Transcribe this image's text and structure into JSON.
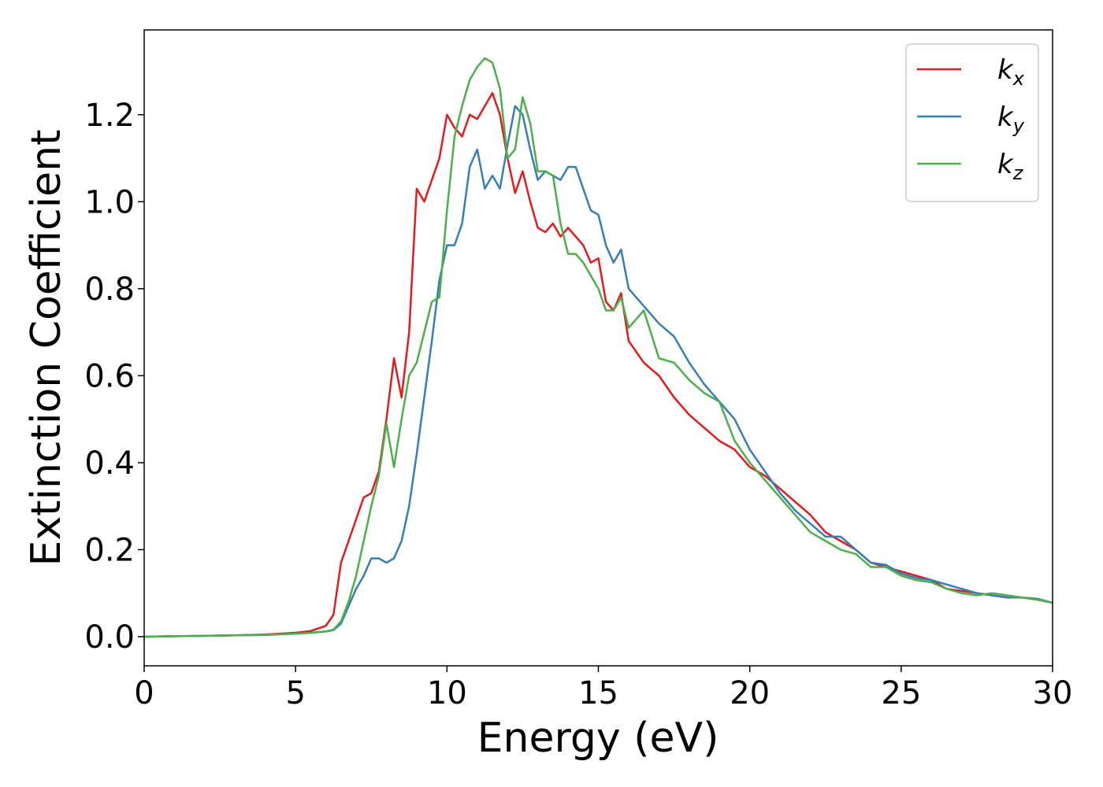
{
  "chart_data": {
    "type": "line",
    "xlabel": "Energy (eV)",
    "ylabel": "Extinction Coefficient",
    "xlim": [
      0,
      30
    ],
    "ylim": [
      -0.067,
      1.395
    ],
    "xticks": [
      0,
      5,
      10,
      15,
      20,
      25,
      30
    ],
    "yticks": [
      {
        "value": 0,
        "label": "0.0"
      },
      0.2,
      0.4,
      0.6,
      0.8,
      {
        "value": 1,
        "label": "1.0"
      },
      1.2
    ],
    "legend": "upper right",
    "x": [
      0,
      1,
      2,
      3,
      4,
      5,
      5.5,
      6,
      6.25,
      6.5,
      6.75,
      7,
      7.25,
      7.5,
      7.75,
      8,
      8.25,
      8.5,
      8.75,
      9,
      9.25,
      9.5,
      9.75,
      10,
      10.25,
      10.5,
      10.75,
      11,
      11.25,
      11.5,
      11.75,
      12,
      12.25,
      12.5,
      12.75,
      13,
      13.25,
      13.5,
      13.75,
      14,
      14.25,
      14.5,
      14.75,
      15,
      15.25,
      15.5,
      15.75,
      16,
      16.5,
      17,
      17.5,
      18,
      18.5,
      19,
      19.5,
      20,
      20.5,
      21,
      21.5,
      22,
      22.5,
      23,
      23.5,
      24,
      24.5,
      25,
      25.5,
      26,
      26.5,
      27,
      27.5,
      28,
      28.5,
      29,
      29.5,
      30
    ],
    "series": [
      {
        "name": "kx",
        "color": "#e41a1c",
        "values": [
          0,
          0.001,
          0.002,
          0.003,
          0.005,
          0.009,
          0.013,
          0.025,
          0.05,
          0.17,
          0.22,
          0.27,
          0.32,
          0.33,
          0.38,
          0.5,
          0.64,
          0.55,
          0.7,
          1.03,
          1.0,
          1.05,
          1.1,
          1.2,
          1.17,
          1.15,
          1.2,
          1.19,
          1.22,
          1.25,
          1.2,
          1.1,
          1.02,
          1.07,
          1.0,
          0.94,
          0.93,
          0.95,
          0.92,
          0.94,
          0.92,
          0.9,
          0.86,
          0.87,
          0.77,
          0.75,
          0.79,
          0.68,
          0.63,
          0.6,
          0.55,
          0.51,
          0.48,
          0.45,
          0.43,
          0.39,
          0.37,
          0.34,
          0.31,
          0.28,
          0.24,
          0.22,
          0.2,
          0.17,
          0.16,
          0.15,
          0.14,
          0.13,
          0.11,
          0.105,
          0.1,
          0.095,
          0.09,
          0.09,
          0.085,
          0.078
        ]
      },
      {
        "name": "ky",
        "color": "#377eb8",
        "values": [
          0,
          0.001,
          0.002,
          0.003,
          0.004,
          0.007,
          0.009,
          0.012,
          0.015,
          0.03,
          0.07,
          0.11,
          0.14,
          0.18,
          0.18,
          0.17,
          0.18,
          0.22,
          0.3,
          0.42,
          0.55,
          0.68,
          0.82,
          0.9,
          0.9,
          0.95,
          1.08,
          1.12,
          1.03,
          1.06,
          1.03,
          1.13,
          1.22,
          1.2,
          1.12,
          1.05,
          1.07,
          1.06,
          1.05,
          1.08,
          1.08,
          1.03,
          0.98,
          0.97,
          0.9,
          0.86,
          0.89,
          0.8,
          0.76,
          0.72,
          0.69,
          0.63,
          0.58,
          0.54,
          0.5,
          0.43,
          0.38,
          0.33,
          0.29,
          0.26,
          0.23,
          0.23,
          0.2,
          0.17,
          0.165,
          0.145,
          0.135,
          0.13,
          0.12,
          0.11,
          0.1,
          0.095,
          0.09,
          0.09,
          0.087,
          0.078
        ]
      },
      {
        "name": "kz",
        "color": "#4daf4a",
        "values": [
          0,
          0.001,
          0.002,
          0.003,
          0.004,
          0.007,
          0.009,
          0.012,
          0.016,
          0.035,
          0.08,
          0.14,
          0.22,
          0.3,
          0.37,
          0.49,
          0.39,
          0.5,
          0.6,
          0.63,
          0.7,
          0.77,
          0.78,
          0.98,
          1.15,
          1.22,
          1.28,
          1.31,
          1.33,
          1.32,
          1.26,
          1.1,
          1.12,
          1.24,
          1.18,
          1.07,
          1.07,
          1.06,
          0.95,
          0.88,
          0.88,
          0.86,
          0.83,
          0.8,
          0.75,
          0.75,
          0.78,
          0.71,
          0.75,
          0.64,
          0.63,
          0.59,
          0.56,
          0.54,
          0.45,
          0.4,
          0.36,
          0.32,
          0.28,
          0.24,
          0.22,
          0.2,
          0.19,
          0.16,
          0.16,
          0.14,
          0.13,
          0.125,
          0.11,
          0.1,
          0.095,
          0.1,
          0.095,
          0.09,
          0.085,
          0.078
        ]
      }
    ]
  }
}
